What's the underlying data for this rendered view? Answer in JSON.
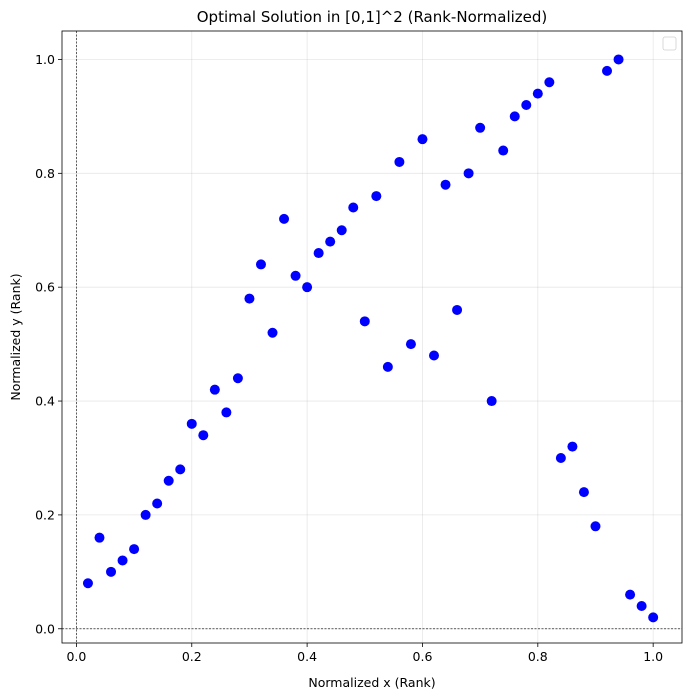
{
  "chart_data": {
    "type": "scatter",
    "title": "Optimal Solution in [0,1]^2 (Rank-Normalized)",
    "xlabel": "Normalized x (Rank)",
    "ylabel": "Normalized y (Rank)",
    "xlim": [
      -0.025,
      1.05
    ],
    "ylim": [
      -0.025,
      1.05
    ],
    "xticks": [
      0.0,
      0.2,
      0.4,
      0.6,
      0.8,
      1.0
    ],
    "yticks": [
      0.0,
      0.2,
      0.4,
      0.6,
      0.8,
      1.0
    ],
    "xtick_labels": [
      "0.0",
      "0.2",
      "0.4",
      "0.6",
      "0.8",
      "1.0"
    ],
    "ytick_labels": [
      "0.0",
      "0.2",
      "0.4",
      "0.6",
      "0.8",
      "1.0"
    ],
    "grid": true,
    "reference_lines": {
      "x": 0,
      "y": 0
    },
    "legend": {
      "placement": "top-right",
      "entries": []
    },
    "point_color": "#0000ff",
    "x": [
      0.02,
      0.04,
      0.06,
      0.08,
      0.1,
      0.12,
      0.14,
      0.16,
      0.18,
      0.2,
      0.22,
      0.24,
      0.26,
      0.28,
      0.3,
      0.32,
      0.34,
      0.36,
      0.38,
      0.4,
      0.42,
      0.44,
      0.46,
      0.48,
      0.5,
      0.52,
      0.54,
      0.56,
      0.58,
      0.6,
      0.62,
      0.64,
      0.66,
      0.68,
      0.7,
      0.72,
      0.74,
      0.76,
      0.78,
      0.8,
      0.82,
      0.84,
      0.86,
      0.88,
      0.9,
      0.92,
      0.94,
      0.96,
      0.98,
      1.0
    ],
    "y": [
      0.08,
      0.16,
      0.1,
      0.12,
      0.14,
      0.2,
      0.22,
      0.26,
      0.28,
      0.36,
      0.34,
      0.42,
      0.38,
      0.44,
      0.58,
      0.64,
      0.52,
      0.72,
      0.62,
      0.6,
      0.66,
      0.68,
      0.7,
      0.74,
      0.54,
      0.76,
      0.46,
      0.82,
      0.5,
      0.86,
      0.48,
      0.78,
      0.56,
      0.8,
      0.88,
      0.4,
      0.84,
      0.9,
      0.92,
      0.94,
      0.96,
      0.3,
      0.32,
      0.24,
      0.18,
      0.98,
      1.0,
      0.06,
      0.04,
      0.02
    ]
  }
}
